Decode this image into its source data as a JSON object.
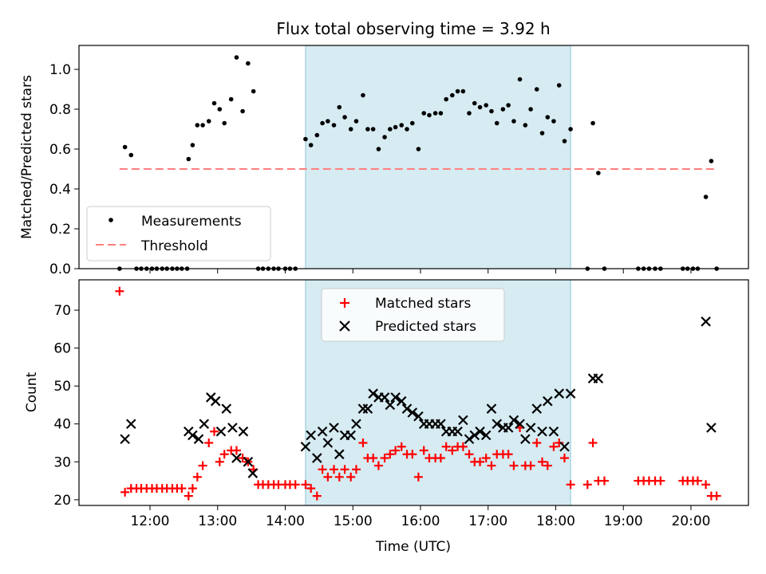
{
  "chart_data": [
    {
      "type": "scatter",
      "title": "Flux total observing time = 3.92 h",
      "xlabel": "",
      "ylabel": "Matched/Predicted stars",
      "xlim": [
        10.95,
        20.85
      ],
      "ylim": [
        0.0,
        1.12
      ],
      "yticks": [
        0.0,
        0.2,
        0.4,
        0.6,
        0.8,
        1.0
      ],
      "shaded_region": [
        14.3,
        18.22
      ],
      "legend": {
        "placement": "lower-left",
        "measurements_label": "Measurements",
        "threshold_label": "Threshold"
      },
      "threshold": {
        "value": 0.5,
        "x_range": [
          11.55,
          20.35
        ],
        "color": "#ff7f7f"
      },
      "series": [
        {
          "name": "Measurements",
          "color": "#000000",
          "x": [
            11.55,
            11.63,
            11.72,
            11.8,
            11.87,
            11.95,
            12.03,
            12.1,
            12.18,
            12.25,
            12.33,
            12.4,
            12.47,
            12.55,
            12.57,
            12.63,
            12.7,
            12.78,
            12.87,
            12.95,
            13.03,
            13.1,
            13.2,
            13.28,
            13.37,
            13.45,
            13.53,
            13.6,
            13.67,
            13.75,
            13.83,
            13.9,
            14.0,
            14.07,
            14.15,
            14.3,
            14.38,
            14.47,
            14.55,
            14.63,
            14.72,
            14.8,
            14.88,
            14.97,
            15.05,
            15.15,
            15.22,
            15.3,
            15.38,
            15.47,
            15.55,
            15.63,
            15.72,
            15.8,
            15.88,
            15.97,
            16.05,
            16.13,
            16.22,
            16.3,
            16.38,
            16.47,
            16.55,
            16.63,
            16.72,
            16.8,
            16.88,
            16.97,
            17.05,
            17.13,
            17.22,
            17.3,
            17.38,
            17.47,
            17.55,
            17.63,
            17.72,
            17.8,
            17.88,
            17.97,
            18.05,
            18.13,
            18.22,
            18.47,
            18.55,
            18.63,
            18.72,
            19.22,
            19.3,
            19.38,
            19.47,
            19.55,
            19.88,
            19.95,
            20.03,
            20.1,
            20.22,
            20.3,
            20.38
          ],
          "y": [
            0.0,
            0.61,
            0.57,
            0.0,
            0.0,
            0.0,
            0.0,
            0.0,
            0.0,
            0.0,
            0.0,
            0.0,
            0.0,
            0.0,
            0.55,
            0.62,
            0.72,
            0.72,
            0.74,
            0.83,
            0.8,
            0.73,
            0.85,
            1.06,
            0.79,
            1.03,
            0.89,
            0.0,
            0.0,
            0.0,
            0.0,
            0.0,
            0.0,
            0.0,
            0.0,
            0.65,
            0.62,
            0.67,
            0.73,
            0.74,
            0.72,
            0.81,
            0.76,
            0.7,
            0.74,
            0.87,
            0.7,
            0.7,
            0.6,
            0.66,
            0.7,
            0.71,
            0.72,
            0.7,
            0.73,
            0.6,
            0.78,
            0.77,
            0.78,
            0.78,
            0.85,
            0.87,
            0.89,
            0.89,
            0.78,
            0.83,
            0.81,
            0.82,
            0.79,
            0.73,
            0.8,
            0.82,
            0.74,
            0.95,
            0.72,
            0.8,
            0.9,
            0.68,
            0.76,
            0.74,
            0.92,
            0.64,
            0.7,
            0.0,
            0.73,
            0.48,
            0.0,
            0.0,
            0.0,
            0.0,
            0.0,
            0.0,
            0.0,
            0.0,
            0.0,
            0.0,
            0.36,
            0.54,
            0.0
          ]
        }
      ]
    },
    {
      "type": "scatter",
      "title": "",
      "xlabel": "Time (UTC)",
      "ylabel": "Count",
      "xlim": [
        10.95,
        20.85
      ],
      "ylim": [
        18.5,
        78
      ],
      "yticks": [
        20,
        30,
        40,
        50,
        60,
        70
      ],
      "xticks": [
        12,
        13,
        14,
        15,
        16,
        17,
        18,
        19,
        20
      ],
      "xtick_labels": [
        "12:00",
        "13:00",
        "14:00",
        "15:00",
        "16:00",
        "17:00",
        "18:00",
        "19:00",
        "20:00"
      ],
      "shaded_region": [
        14.3,
        18.22
      ],
      "legend": {
        "placement": "upper-center",
        "matched_label": "Matched stars",
        "predicted_label": "Predicted stars"
      },
      "series": [
        {
          "name": "Matched stars",
          "marker": "+",
          "color": "#ff0000",
          "x": [
            11.55,
            11.63,
            11.72,
            11.8,
            11.87,
            11.95,
            12.03,
            12.1,
            12.18,
            12.25,
            12.33,
            12.4,
            12.47,
            12.57,
            12.63,
            12.7,
            12.78,
            12.87,
            12.95,
            13.03,
            13.1,
            13.2,
            13.28,
            13.37,
            13.45,
            13.53,
            13.6,
            13.67,
            13.75,
            13.83,
            13.9,
            14.0,
            14.07,
            14.15,
            14.3,
            14.38,
            14.47,
            14.55,
            14.63,
            14.72,
            14.8,
            14.88,
            14.97,
            15.05,
            15.15,
            15.22,
            15.3,
            15.38,
            15.47,
            15.55,
            15.63,
            15.72,
            15.8,
            15.88,
            15.97,
            16.05,
            16.13,
            16.22,
            16.3,
            16.38,
            16.47,
            16.55,
            16.63,
            16.72,
            16.8,
            16.88,
            16.97,
            17.05,
            17.13,
            17.22,
            17.3,
            17.38,
            17.47,
            17.55,
            17.63,
            17.72,
            17.8,
            17.88,
            17.97,
            18.05,
            18.13,
            18.22,
            18.47,
            18.55,
            18.63,
            18.72,
            19.22,
            19.3,
            19.38,
            19.47,
            19.55,
            19.88,
            19.95,
            20.03,
            20.1,
            20.22,
            20.3,
            20.38
          ],
          "y": [
            75,
            22,
            23,
            23,
            23,
            23,
            23,
            23,
            23,
            23,
            23,
            23,
            23,
            21,
            23,
            26,
            29,
            35,
            38,
            30,
            32,
            33,
            33,
            31,
            30,
            28,
            24,
            24,
            24,
            24,
            24,
            24,
            24,
            24,
            24,
            23,
            21,
            28,
            26,
            28,
            26,
            28,
            26,
            28,
            35,
            31,
            31,
            29,
            31,
            32,
            33,
            34,
            32,
            32,
            26,
            33,
            31,
            31,
            31,
            34,
            33,
            34,
            34,
            32,
            30,
            30,
            31,
            29,
            32,
            32,
            32,
            29,
            39,
            29,
            29,
            35,
            30,
            29,
            34,
            35,
            31,
            24,
            24,
            35,
            25,
            25,
            25,
            25,
            25,
            25,
            25,
            25,
            25,
            25,
            25,
            24,
            21,
            21
          ]
        },
        {
          "name": "Predicted stars",
          "marker": "x",
          "color": "#000000",
          "x": [
            11.63,
            11.72,
            12.57,
            12.63,
            12.72,
            12.8,
            12.9,
            12.97,
            13.05,
            13.13,
            13.22,
            13.28,
            13.38,
            13.45,
            13.52,
            14.3,
            14.38,
            14.47,
            14.55,
            14.63,
            14.72,
            14.8,
            14.88,
            14.97,
            15.05,
            15.15,
            15.22,
            15.3,
            15.38,
            15.47,
            15.55,
            15.63,
            15.72,
            15.8,
            15.88,
            15.97,
            16.05,
            16.13,
            16.22,
            16.3,
            16.38,
            16.47,
            16.55,
            16.63,
            16.72,
            16.8,
            16.88,
            16.97,
            17.05,
            17.13,
            17.22,
            17.3,
            17.38,
            17.47,
            17.55,
            17.63,
            17.72,
            17.8,
            17.88,
            17.97,
            18.05,
            18.13,
            18.22,
            18.55,
            18.63,
            20.22,
            20.3
          ],
          "y": [
            36,
            40,
            38,
            37,
            36,
            40,
            47,
            46,
            38,
            44,
            39,
            31,
            38,
            30,
            27,
            34,
            37,
            31,
            38,
            35,
            39,
            32,
            37,
            37,
            40,
            44,
            44,
            48,
            47,
            47,
            45,
            47,
            46,
            44,
            43,
            42,
            40,
            40,
            40,
            40,
            38,
            38,
            38,
            41,
            36,
            37,
            38,
            37,
            44,
            40,
            39,
            39,
            41,
            40,
            36,
            39,
            44,
            38,
            46,
            38,
            48,
            34,
            48,
            52,
            52,
            67,
            39
          ]
        }
      ]
    }
  ]
}
